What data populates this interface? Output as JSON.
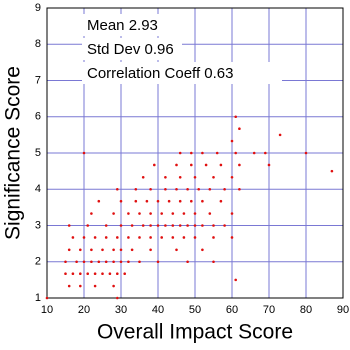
{
  "chart_data": {
    "type": "scatter",
    "xlabel": "Overall Impact Score",
    "ylabel": "Significance Score",
    "annotations": [
      "Mean  2.93",
      "Std Dev  0.96",
      "Correlation Coeff  0.63"
    ],
    "xlim": [
      10,
      90
    ],
    "ylim": [
      1,
      9
    ],
    "xticks": [
      10,
      20,
      30,
      40,
      50,
      60,
      70,
      80,
      90
    ],
    "yticks": [
      1,
      2,
      3,
      4,
      5,
      6,
      7,
      8,
      9
    ],
    "grid": true,
    "grid_color": "#7a78d4",
    "color": "#e01010",
    "x": [
      10,
      29,
      16,
      19,
      23,
      28,
      61,
      15,
      17,
      19,
      21,
      23,
      25,
      27,
      29,
      31,
      15,
      18,
      20,
      22,
      24,
      26,
      28,
      30,
      32,
      35,
      40,
      48,
      55,
      16,
      19,
      22,
      25,
      28,
      30,
      33,
      38,
      45,
      52,
      17,
      20,
      23,
      26,
      29,
      32,
      35,
      38,
      41,
      44,
      47,
      50,
      55,
      60,
      16,
      21,
      26,
      30,
      33,
      36,
      38,
      40,
      42,
      44,
      46,
      48,
      50,
      52,
      55,
      58,
      22,
      28,
      32,
      35,
      38,
      41,
      44,
      47,
      50,
      54,
      60,
      24,
      30,
      34,
      37,
      40,
      43,
      46,
      49,
      52,
      57,
      29,
      34,
      38,
      42,
      45,
      48,
      51,
      54,
      58,
      62,
      36,
      42,
      46,
      50,
      55,
      60,
      87,
      39,
      45,
      49,
      53,
      57,
      62,
      70,
      20,
      46,
      49,
      52,
      56,
      61,
      66,
      69,
      80,
      60,
      73,
      62,
      61
    ],
    "y": [
      1,
      1,
      1.33,
      1.33,
      1.33,
      1.33,
      1.5,
      1.67,
      1.67,
      1.67,
      1.67,
      1.67,
      1.67,
      1.67,
      1.67,
      1.67,
      2,
      2,
      2,
      2,
      2,
      2,
      2,
      2,
      2,
      2,
      2,
      2,
      2,
      2.33,
      2.33,
      2.33,
      2.33,
      2.33,
      2.33,
      2.33,
      2.33,
      2.33,
      2.33,
      2.67,
      2.67,
      2.67,
      2.67,
      2.67,
      2.67,
      2.67,
      2.67,
      2.67,
      2.67,
      2.67,
      2.67,
      2.67,
      2.67,
      3,
      3,
      3,
      3,
      3,
      3,
      3,
      3,
      3,
      3,
      3,
      3,
      3,
      3,
      3,
      3,
      3.33,
      3.33,
      3.33,
      3.33,
      3.33,
      3.33,
      3.33,
      3.33,
      3.33,
      3.33,
      3.33,
      3.67,
      3.67,
      3.67,
      3.67,
      3.67,
      3.67,
      3.67,
      3.67,
      3.67,
      3.67,
      4,
      4,
      4,
      4,
      4,
      4,
      4,
      4,
      4,
      4,
      4.33,
      4.33,
      4.33,
      4.33,
      4.33,
      4.33,
      4.5,
      4.67,
      4.67,
      4.67,
      4.67,
      4.67,
      4.67,
      4.67,
      5,
      5,
      5,
      5,
      5,
      5,
      5,
      5,
      5,
      5.33,
      5.5,
      5.67,
      6
    ]
  }
}
